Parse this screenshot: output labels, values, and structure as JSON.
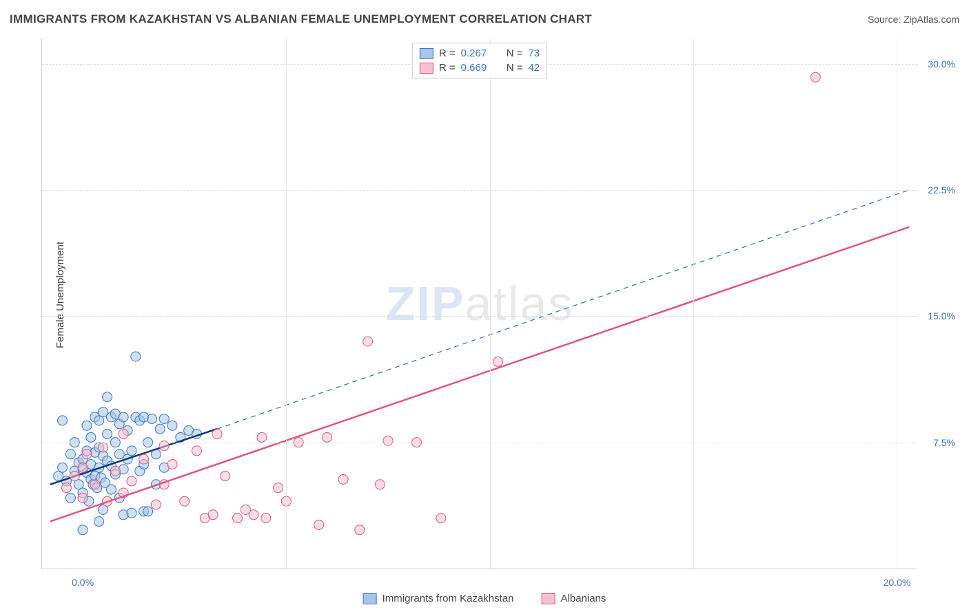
{
  "header": {
    "title": "IMMIGRANTS FROM KAZAKHSTAN VS ALBANIAN FEMALE UNEMPLOYMENT CORRELATION CHART",
    "source": "Source: ZipAtlas.com"
  },
  "chart": {
    "type": "scatter",
    "ylabel": "Female Unemployment",
    "watermark_zip": "ZIP",
    "watermark_atlas": "atlas",
    "xlim": [
      -1.0,
      20.5
    ],
    "ylim": [
      0.0,
      31.5
    ],
    "x_ticks": [
      0.0,
      20.0
    ],
    "x_tick_labels": [
      "0.0%",
      "20.0%"
    ],
    "y_ticks": [
      7.5,
      15.0,
      22.5,
      30.0
    ],
    "y_tick_labels": [
      "7.5%",
      "15.0%",
      "22.5%",
      "30.0%"
    ],
    "x_minor_grid": [
      5.0,
      10.0,
      15.0,
      20.0
    ],
    "background_color": "#ffffff",
    "grid_color": "#dddddd",
    "series": [
      {
        "name": "Immigrants from Kazakhstan",
        "color_fill": "#a8c5eb",
        "color_stroke": "#3b74c9",
        "r": 0.267,
        "n": 73,
        "trend": {
          "x1": -0.8,
          "y1": 5.0,
          "x2": 3.3,
          "y2": 8.3,
          "dashed": false,
          "color": "#10377a",
          "width": 2.5
        },
        "trend_ext": {
          "x1": 3.3,
          "y1": 8.3,
          "x2": 20.3,
          "y2": 22.5,
          "dashed": true,
          "color": "#3b74c9",
          "width": 1.3
        },
        "points": [
          [
            -0.6,
            5.5
          ],
          [
            -0.5,
            6.0
          ],
          [
            -0.4,
            5.2
          ],
          [
            -0.3,
            6.8
          ],
          [
            -0.2,
            5.8
          ],
          [
            -0.2,
            7.5
          ],
          [
            -0.1,
            5.0
          ],
          [
            -0.1,
            6.3
          ],
          [
            0.0,
            5.9
          ],
          [
            0.0,
            6.5
          ],
          [
            0.0,
            4.5
          ],
          [
            0.1,
            5.7
          ],
          [
            0.1,
            7.0
          ],
          [
            0.1,
            8.5
          ],
          [
            0.15,
            4.0
          ],
          [
            0.2,
            5.3
          ],
          [
            0.2,
            6.2
          ],
          [
            0.2,
            7.8
          ],
          [
            0.25,
            5.0
          ],
          [
            0.3,
            5.5
          ],
          [
            0.3,
            6.9
          ],
          [
            0.3,
            9.0
          ],
          [
            0.35,
            4.8
          ],
          [
            0.4,
            6.0
          ],
          [
            0.4,
            7.2
          ],
          [
            0.4,
            8.8
          ],
          [
            0.45,
            5.4
          ],
          [
            0.5,
            3.5
          ],
          [
            0.5,
            6.7
          ],
          [
            0.5,
            9.3
          ],
          [
            0.55,
            5.1
          ],
          [
            0.6,
            6.4
          ],
          [
            0.6,
            8.0
          ],
          [
            0.6,
            10.2
          ],
          [
            0.7,
            4.7
          ],
          [
            0.7,
            6.1
          ],
          [
            0.7,
            9.0
          ],
          [
            0.8,
            5.6
          ],
          [
            0.8,
            7.5
          ],
          [
            0.8,
            9.2
          ],
          [
            0.9,
            4.2
          ],
          [
            0.9,
            6.8
          ],
          [
            0.9,
            8.6
          ],
          [
            1.0,
            3.2
          ],
          [
            1.0,
            5.9
          ],
          [
            1.0,
            9.0
          ],
          [
            1.1,
            6.5
          ],
          [
            1.1,
            8.2
          ],
          [
            1.2,
            3.3
          ],
          [
            1.2,
            7.0
          ],
          [
            1.3,
            9.0
          ],
          [
            1.3,
            12.6
          ],
          [
            1.4,
            5.8
          ],
          [
            1.4,
            8.8
          ],
          [
            1.5,
            3.4
          ],
          [
            1.5,
            6.2
          ],
          [
            1.5,
            9.0
          ],
          [
            1.6,
            3.4
          ],
          [
            1.6,
            7.5
          ],
          [
            1.7,
            8.9
          ],
          [
            1.8,
            5.0
          ],
          [
            1.8,
            6.8
          ],
          [
            1.9,
            8.3
          ],
          [
            2.0,
            8.9
          ],
          [
            2.0,
            6.0
          ],
          [
            2.2,
            8.5
          ],
          [
            2.4,
            7.8
          ],
          [
            2.6,
            8.2
          ],
          [
            2.8,
            8.0
          ],
          [
            0.0,
            2.3
          ],
          [
            -0.3,
            4.2
          ],
          [
            -0.5,
            8.8
          ],
          [
            0.4,
            2.8
          ]
        ]
      },
      {
        "name": "Albanians",
        "color_fill": "#f6c2d0",
        "color_stroke": "#e25578",
        "r": 0.669,
        "n": 42,
        "trend": {
          "x1": -0.8,
          "y1": 2.8,
          "x2": 20.3,
          "y2": 20.3,
          "dashed": false,
          "color": "#e25578",
          "width": 2.5
        },
        "points": [
          [
            -0.4,
            4.8
          ],
          [
            -0.2,
            5.5
          ],
          [
            0.0,
            6.0
          ],
          [
            0.0,
            4.2
          ],
          [
            0.1,
            6.8
          ],
          [
            0.3,
            5.0
          ],
          [
            0.5,
            7.2
          ],
          [
            0.6,
            4.0
          ],
          [
            0.8,
            5.8
          ],
          [
            1.0,
            8.0
          ],
          [
            1.0,
            4.5
          ],
          [
            1.2,
            5.2
          ],
          [
            1.5,
            6.5
          ],
          [
            1.8,
            3.8
          ],
          [
            2.0,
            5.0
          ],
          [
            2.2,
            6.2
          ],
          [
            2.5,
            4.0
          ],
          [
            2.8,
            7.0
          ],
          [
            3.0,
            3.0
          ],
          [
            3.2,
            3.2
          ],
          [
            3.5,
            5.5
          ],
          [
            3.8,
            3.0
          ],
          [
            4.0,
            3.5
          ],
          [
            4.2,
            3.2
          ],
          [
            4.5,
            3.0
          ],
          [
            4.8,
            4.8
          ],
          [
            5.3,
            7.5
          ],
          [
            5.8,
            2.6
          ],
          [
            6.0,
            7.8
          ],
          [
            6.4,
            5.3
          ],
          [
            6.8,
            2.3
          ],
          [
            7.0,
            13.5
          ],
          [
            7.3,
            5.0
          ],
          [
            7.5,
            7.6
          ],
          [
            8.2,
            7.5
          ],
          [
            8.8,
            3.0
          ],
          [
            10.2,
            12.3
          ],
          [
            18.0,
            29.2
          ],
          [
            3.3,
            8.0
          ],
          [
            5.0,
            4.0
          ],
          [
            4.4,
            7.8
          ],
          [
            2.0,
            7.3
          ]
        ]
      }
    ],
    "legend_top": {
      "r_label": "R = ",
      "n_label": "N = "
    },
    "legend_bottom_labels": [
      "Immigrants from Kazakhstan",
      "Albanians"
    ],
    "tick_color": "#3b74c9",
    "label_color": "#444444",
    "marker_radius": 7,
    "marker_opacity": 0.55
  }
}
